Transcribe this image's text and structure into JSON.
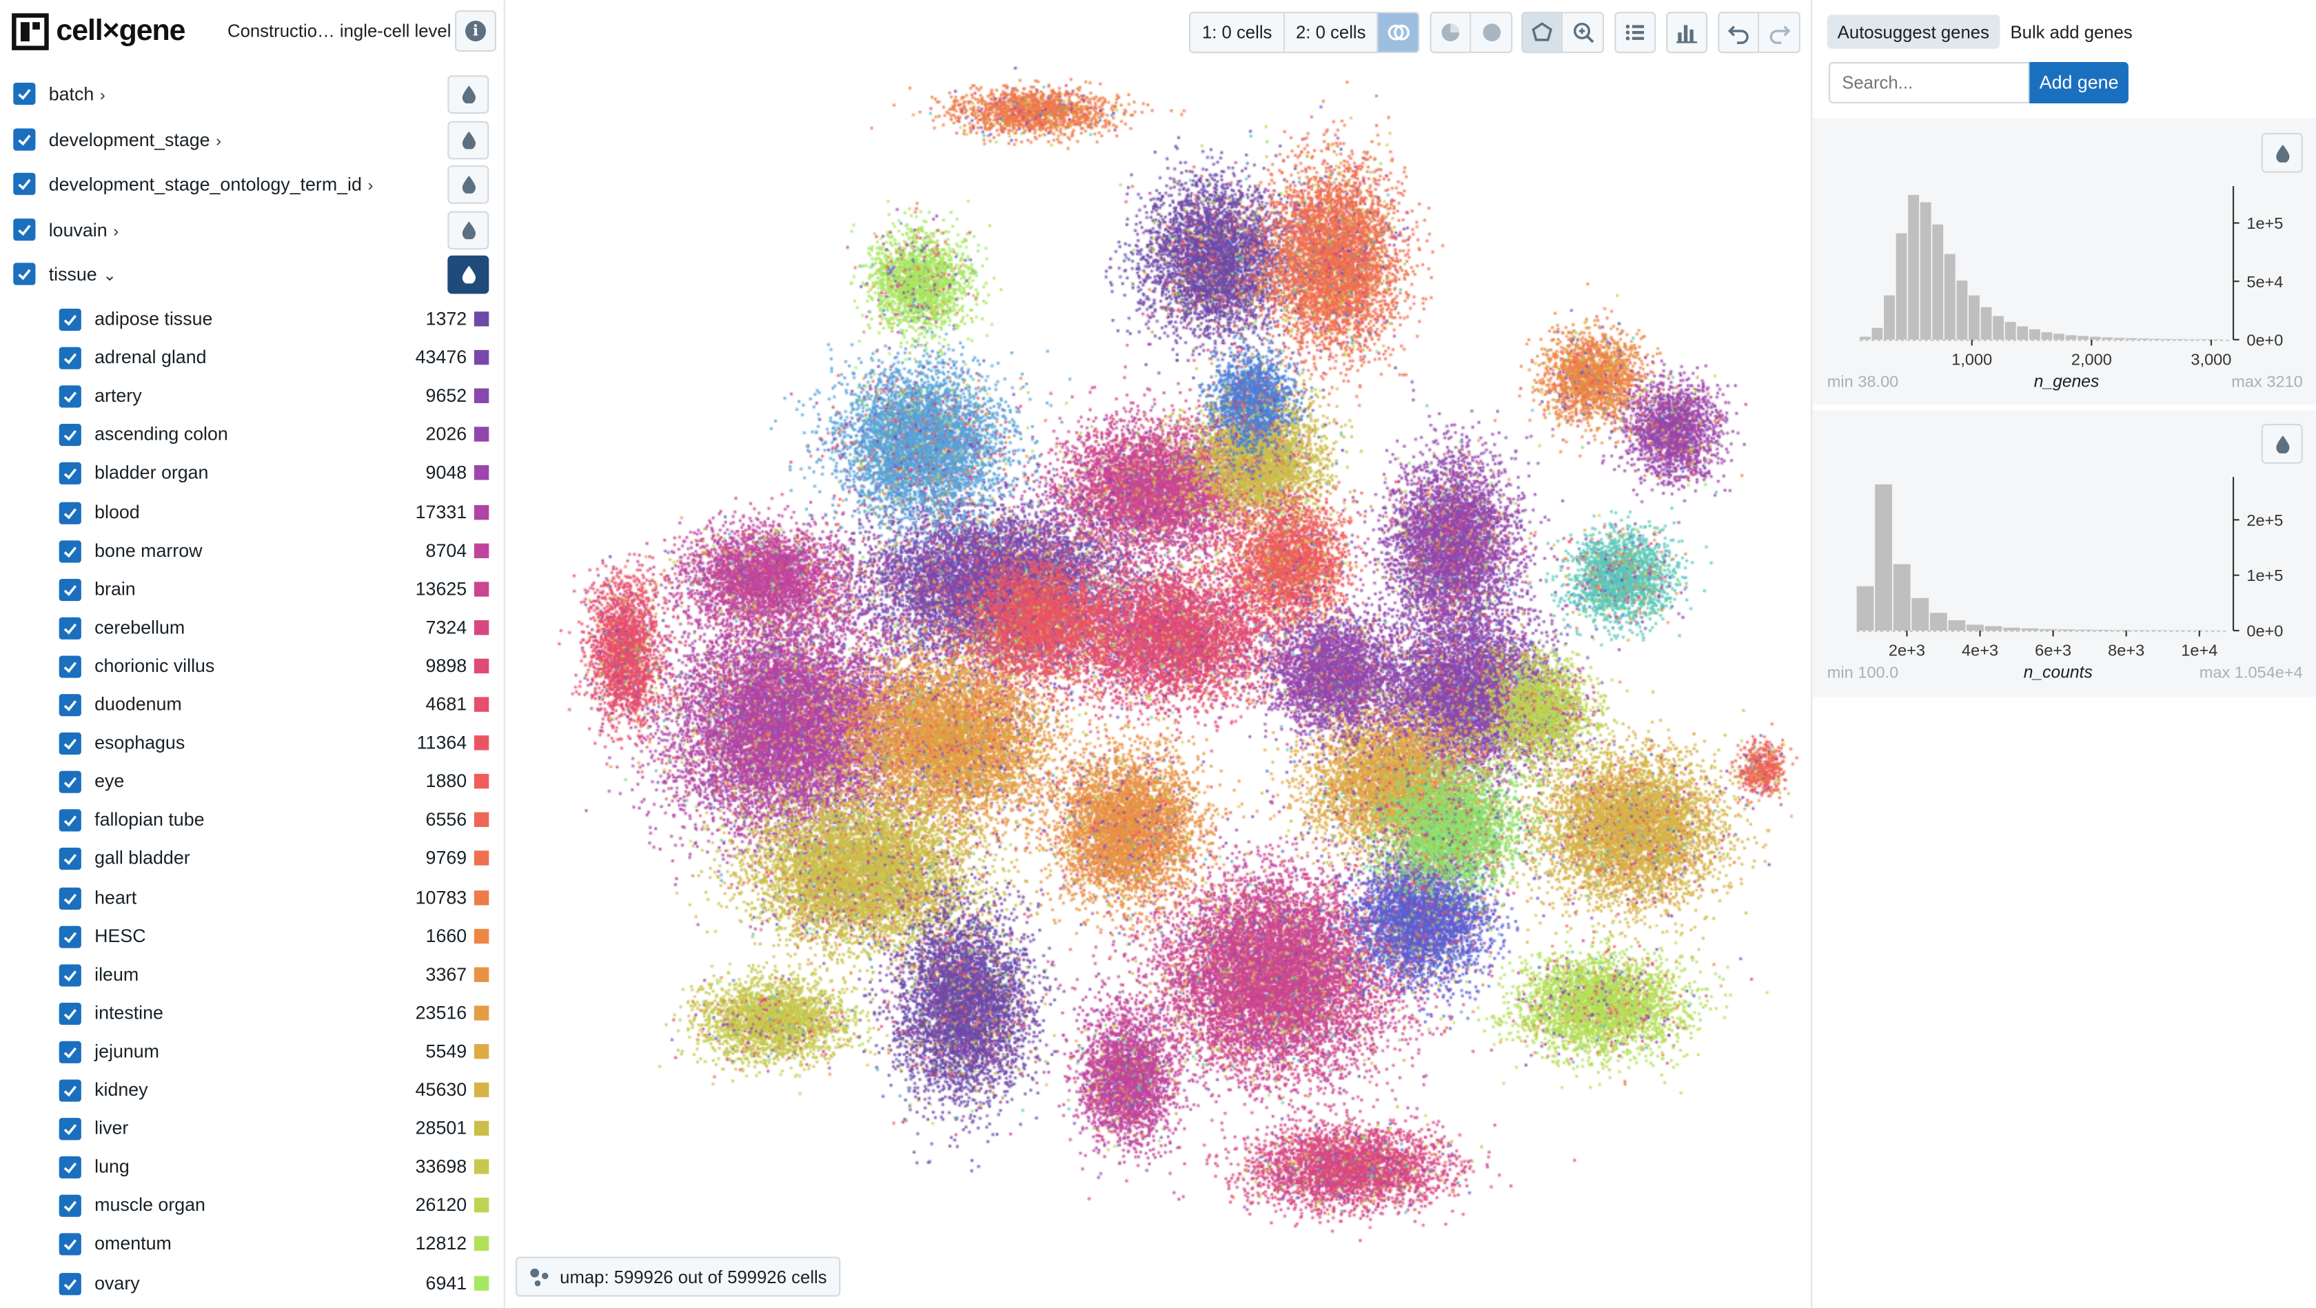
{
  "app": {
    "logo_text": "cell×gene",
    "dataset_title": "Constructio… ingle-cell level"
  },
  "categories": [
    {
      "label": "batch",
      "expanded": false
    },
    {
      "label": "development_stage",
      "expanded": false
    },
    {
      "label": "development_stage_ontology_term_id",
      "expanded": false
    },
    {
      "label": "louvain",
      "expanded": false
    },
    {
      "label": "tissue",
      "expanded": true
    }
  ],
  "tissue_values": [
    {
      "label": "adipose tissue",
      "count": "1372",
      "color": "#6e49a8"
    },
    {
      "label": "adrenal gland",
      "count": "43476",
      "color": "#7a48ad"
    },
    {
      "label": "artery",
      "count": "9652",
      "color": "#8747ae"
    },
    {
      "label": "ascending colon",
      "count": "2026",
      "color": "#9246ad"
    },
    {
      "label": "bladder organ",
      "count": "9048",
      "color": "#9c45ab"
    },
    {
      "label": "blood",
      "count": "17331",
      "color": "#b044a4"
    },
    {
      "label": "bone marrow",
      "count": "8704",
      "color": "#c0449c"
    },
    {
      "label": "brain",
      "count": "13625",
      "color": "#cb4590"
    },
    {
      "label": "cerebellum",
      "count": "7324",
      "color": "#d84782"
    },
    {
      "label": "chorionic villus",
      "count": "9898",
      "color": "#e04a76"
    },
    {
      "label": "duodenum",
      "count": "4681",
      "color": "#e74e6c"
    },
    {
      "label": "esophagus",
      "count": "11364",
      "color": "#eb5563"
    },
    {
      "label": "eye",
      "count": "1880",
      "color": "#ee5d5c"
    },
    {
      "label": "fallopian tube",
      "count": "6556",
      "color": "#ef6656"
    },
    {
      "label": "gall bladder",
      "count": "9769",
      "color": "#ef704f"
    },
    {
      "label": "heart",
      "count": "10783",
      "color": "#ee7b49"
    },
    {
      "label": "HESC",
      "count": "1660",
      "color": "#ec8745"
    },
    {
      "label": "ileum",
      "count": "3367",
      "color": "#e99244"
    },
    {
      "label": "intestine",
      "count": "23516",
      "color": "#e49d44"
    },
    {
      "label": "jejunum",
      "count": "5549",
      "color": "#dfa946"
    },
    {
      "label": "kidney",
      "count": "45630",
      "color": "#d7b347"
    },
    {
      "label": "liver",
      "count": "28501",
      "color": "#ccbe4a"
    },
    {
      "label": "lung",
      "count": "33698",
      "color": "#c6c94d"
    },
    {
      "label": "muscle organ",
      "count": "26120",
      "color": "#bdd552"
    },
    {
      "label": "omentum",
      "count": "12812",
      "color": "#b4df58"
    },
    {
      "label": "ovary",
      "count": "6941",
      "color": "#a7e862"
    }
  ],
  "toolbar": {
    "cells1": "1: 0 cells",
    "cells2": "2: 0 cells",
    "icons": [
      "venn-icon",
      "pie-icon",
      "circle-icon",
      "lasso-icon",
      "zoom-icon",
      "list-icon",
      "bar-chart-icon",
      "undo-icon",
      "redo-icon"
    ]
  },
  "embedding": {
    "label": "umap: 599926 out of 599926 cells"
  },
  "gene_panel": {
    "tab_autosuggest": "Autosuggest genes",
    "tab_bulk": "Bulk add genes",
    "search_placeholder": "Search...",
    "add_label": "Add gene"
  },
  "histograms": [
    {
      "name": "n_genes",
      "min_label": "min 38.00",
      "max_label": "max 3210",
      "x_ticks": [
        "1,000",
        "2,000",
        "3,000"
      ],
      "y_ticks": [
        "1e+5",
        "5e+4",
        "0e+0"
      ],
      "bars": [
        0.02,
        0.08,
        0.3,
        0.72,
        0.98,
        0.93,
        0.78,
        0.58,
        0.4,
        0.3,
        0.22,
        0.16,
        0.12,
        0.09,
        0.07,
        0.05,
        0.04,
        0.03,
        0.025,
        0.02,
        0.015,
        0.012,
        0.01,
        0.008,
        0.006,
        0.005,
        0.004,
        0.003,
        0.003,
        0.002
      ]
    },
    {
      "name": "n_counts",
      "min_label": "min 100.0",
      "max_label": "max 1.054e+4",
      "x_ticks": [
        "2e+3",
        "4e+3",
        "6e+3",
        "8e+3",
        "1e+4"
      ],
      "y_ticks": [
        "2e+5",
        "1e+5",
        "0e+0"
      ],
      "bars": [
        0.3,
        0.99,
        0.45,
        0.22,
        0.12,
        0.07,
        0.04,
        0.03,
        0.02,
        0.015,
        0.01,
        0.008,
        0.006,
        0.005,
        0.004,
        0.003,
        0.003,
        0.002,
        0.002,
        0.001
      ]
    }
  ]
}
